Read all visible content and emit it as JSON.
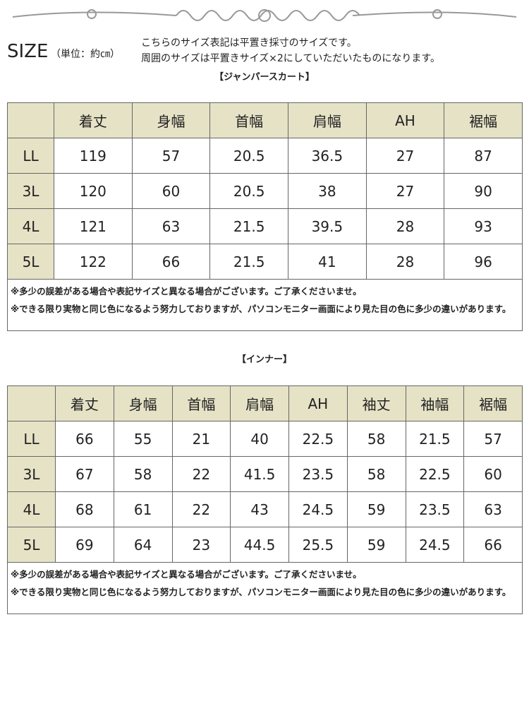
{
  "header": {
    "size_label": "SIZE",
    "unit": "（単位：約㎝）",
    "notes": [
      "こちらのサイズ表記は平置き採寸のサイズです。",
      "周囲のサイズは平置きサイズ×2にしていただいたものになります。"
    ]
  },
  "sections": [
    {
      "title": "【ジャンパースカート】",
      "table": {
        "columns": [
          "着丈",
          "身幅",
          "首幅",
          "肩幅",
          "AH",
          "裾幅"
        ],
        "rows": [
          {
            "label": "LL",
            "values": [
              "119",
              "57",
              "20.5",
              "36.5",
              "27",
              "87"
            ]
          },
          {
            "label": "3L",
            "values": [
              "120",
              "60",
              "20.5",
              "38",
              "27",
              "90"
            ]
          },
          {
            "label": "4L",
            "values": [
              "121",
              "63",
              "21.5",
              "39.5",
              "28",
              "93"
            ]
          },
          {
            "label": "5L",
            "values": [
              "122",
              "66",
              "21.5",
              "41",
              "28",
              "96"
            ]
          }
        ]
      },
      "notes": [
        "※多少の誤差がある場合や表記サイズと異なる場合がございます。ご了承くださいませ。",
        "※できる限り実物と同じ色になるよう努力しておりますが、パソコンモニター画面により見た目の色に多少の違いがあります。"
      ]
    },
    {
      "title": "【インナー】",
      "table": {
        "columns": [
          "着丈",
          "身幅",
          "首幅",
          "肩幅",
          "AH",
          "袖丈",
          "袖幅",
          "裾幅"
        ],
        "rows": [
          {
            "label": "LL",
            "values": [
              "66",
              "55",
              "21",
              "40",
              "22.5",
              "58",
              "21.5",
              "57"
            ]
          },
          {
            "label": "3L",
            "values": [
              "67",
              "58",
              "22",
              "41.5",
              "23.5",
              "58",
              "22.5",
              "60"
            ]
          },
          {
            "label": "4L",
            "values": [
              "68",
              "61",
              "22",
              "43",
              "24.5",
              "59",
              "23.5",
              "63"
            ]
          },
          {
            "label": "5L",
            "values": [
              "69",
              "64",
              "23",
              "44.5",
              "25.5",
              "59",
              "24.5",
              "66"
            ]
          }
        ]
      },
      "notes": [
        "※多少の誤差がある場合や表記サイズと異なる場合がございます。ご了承くださいませ。",
        "※できる限り実物と同じ色になるよう努力しておりますが、パソコンモニター画面により見た目の色に多少の違いがあります。"
      ]
    }
  ]
}
